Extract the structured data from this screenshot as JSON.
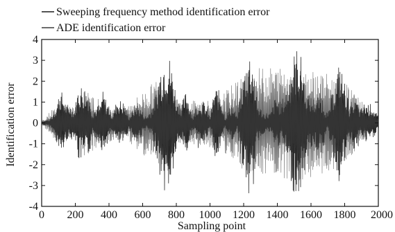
{
  "chart_data": {
    "type": "line",
    "title": "",
    "xlabel": "Sampling point",
    "ylabel": "Identification error",
    "xlim": [
      0,
      2000
    ],
    "ylim": [
      -4,
      4
    ],
    "x_ticks": [
      0,
      200,
      400,
      600,
      800,
      1000,
      1200,
      1400,
      1600,
      1800,
      2000
    ],
    "x_tick_labels": [
      "0",
      "200",
      "400",
      "600",
      "800",
      "1000",
      "1200",
      "1400",
      "1600",
      "1800",
      "2000"
    ],
    "y_ticks": [
      -4,
      -3,
      -2,
      -1,
      0,
      1,
      2,
      3,
      4
    ],
    "y_tick_labels": [
      "-4",
      "-3",
      "-2",
      "-1",
      "0",
      "1",
      "2",
      "3",
      "4"
    ],
    "grid": false,
    "legend_position": "top-left, above plot",
    "series": [
      {
        "name": "Sweeping frequency method identification error",
        "color": "#1a1a1a",
        "style": "dense oscillating error signal; burst envelope (sampling point, peak |error|)",
        "envelope": [
          [
            0,
            0.1
          ],
          [
            50,
            0.2
          ],
          [
            75,
            0.6
          ],
          [
            90,
            1.0
          ],
          [
            110,
            1.7
          ],
          [
            130,
            1.3
          ],
          [
            150,
            0.8
          ],
          [
            165,
            0.9
          ],
          [
            180,
            0.8
          ],
          [
            195,
            0.6
          ],
          [
            220,
            1.9
          ],
          [
            250,
            1.8
          ],
          [
            280,
            1.6
          ],
          [
            300,
            0.6
          ],
          [
            340,
            0.9
          ],
          [
            350,
            0.9
          ],
          [
            360,
            1.6
          ],
          [
            390,
            1.0
          ],
          [
            420,
            0.4
          ],
          [
            450,
            1.2
          ],
          [
            490,
            1.0
          ],
          [
            520,
            0.3
          ],
          [
            560,
            1.0
          ],
          [
            590,
            0.7
          ],
          [
            620,
            0.3
          ],
          [
            650,
            0.7
          ],
          [
            680,
            1.5
          ],
          [
            700,
            2.5
          ],
          [
            720,
            3.2
          ],
          [
            740,
            3.5
          ],
          [
            760,
            3.2
          ],
          [
            780,
            2.5
          ],
          [
            800,
            1.4
          ],
          [
            830,
            0.9
          ],
          [
            860,
            1.6
          ],
          [
            880,
            0.9
          ],
          [
            900,
            0.3
          ],
          [
            930,
            1.2
          ],
          [
            970,
            1.0
          ],
          [
            1000,
            0.3
          ],
          [
            1030,
            1.8
          ],
          [
            1060,
            1.5
          ],
          [
            1090,
            0.3
          ],
          [
            1130,
            1.0
          ],
          [
            1160,
            0.3
          ],
          [
            1190,
            2.0
          ],
          [
            1230,
            3.6
          ],
          [
            1260,
            3.0
          ],
          [
            1280,
            1.0
          ],
          [
            1320,
            0.5
          ],
          [
            1360,
            0.5
          ],
          [
            1390,
            1.3
          ],
          [
            1420,
            1.0
          ],
          [
            1450,
            1.5
          ],
          [
            1490,
            3.2
          ],
          [
            1520,
            3.7
          ],
          [
            1550,
            3.0
          ],
          [
            1580,
            1.4
          ],
          [
            1620,
            1.2
          ],
          [
            1660,
            1.5
          ],
          [
            1700,
            0.4
          ],
          [
            1740,
            2.0
          ],
          [
            1770,
            3.0
          ],
          [
            1800,
            2.0
          ],
          [
            1830,
            0.8
          ],
          [
            1860,
            1.5
          ],
          [
            1890,
            0.6
          ],
          [
            1920,
            1.0
          ],
          [
            1960,
            0.9
          ],
          [
            2000,
            0.3
          ]
        ]
      },
      {
        "name": "ADE identification error",
        "color": "#3a3a3a",
        "style": "overlapping oscillating error signal, similar envelope",
        "envelope": [
          [
            0,
            0.1
          ],
          [
            100,
            1.0
          ],
          [
            200,
            0.8
          ],
          [
            250,
            1.6
          ],
          [
            400,
            0.9
          ],
          [
            500,
            0.8
          ],
          [
            700,
            2.2
          ],
          [
            750,
            2.4
          ],
          [
            800,
            1.0
          ],
          [
            1050,
            1.2
          ],
          [
            1230,
            2.6
          ],
          [
            1520,
            2.8
          ],
          [
            1770,
            2.2
          ],
          [
            2000,
            0.2
          ]
        ]
      }
    ]
  }
}
